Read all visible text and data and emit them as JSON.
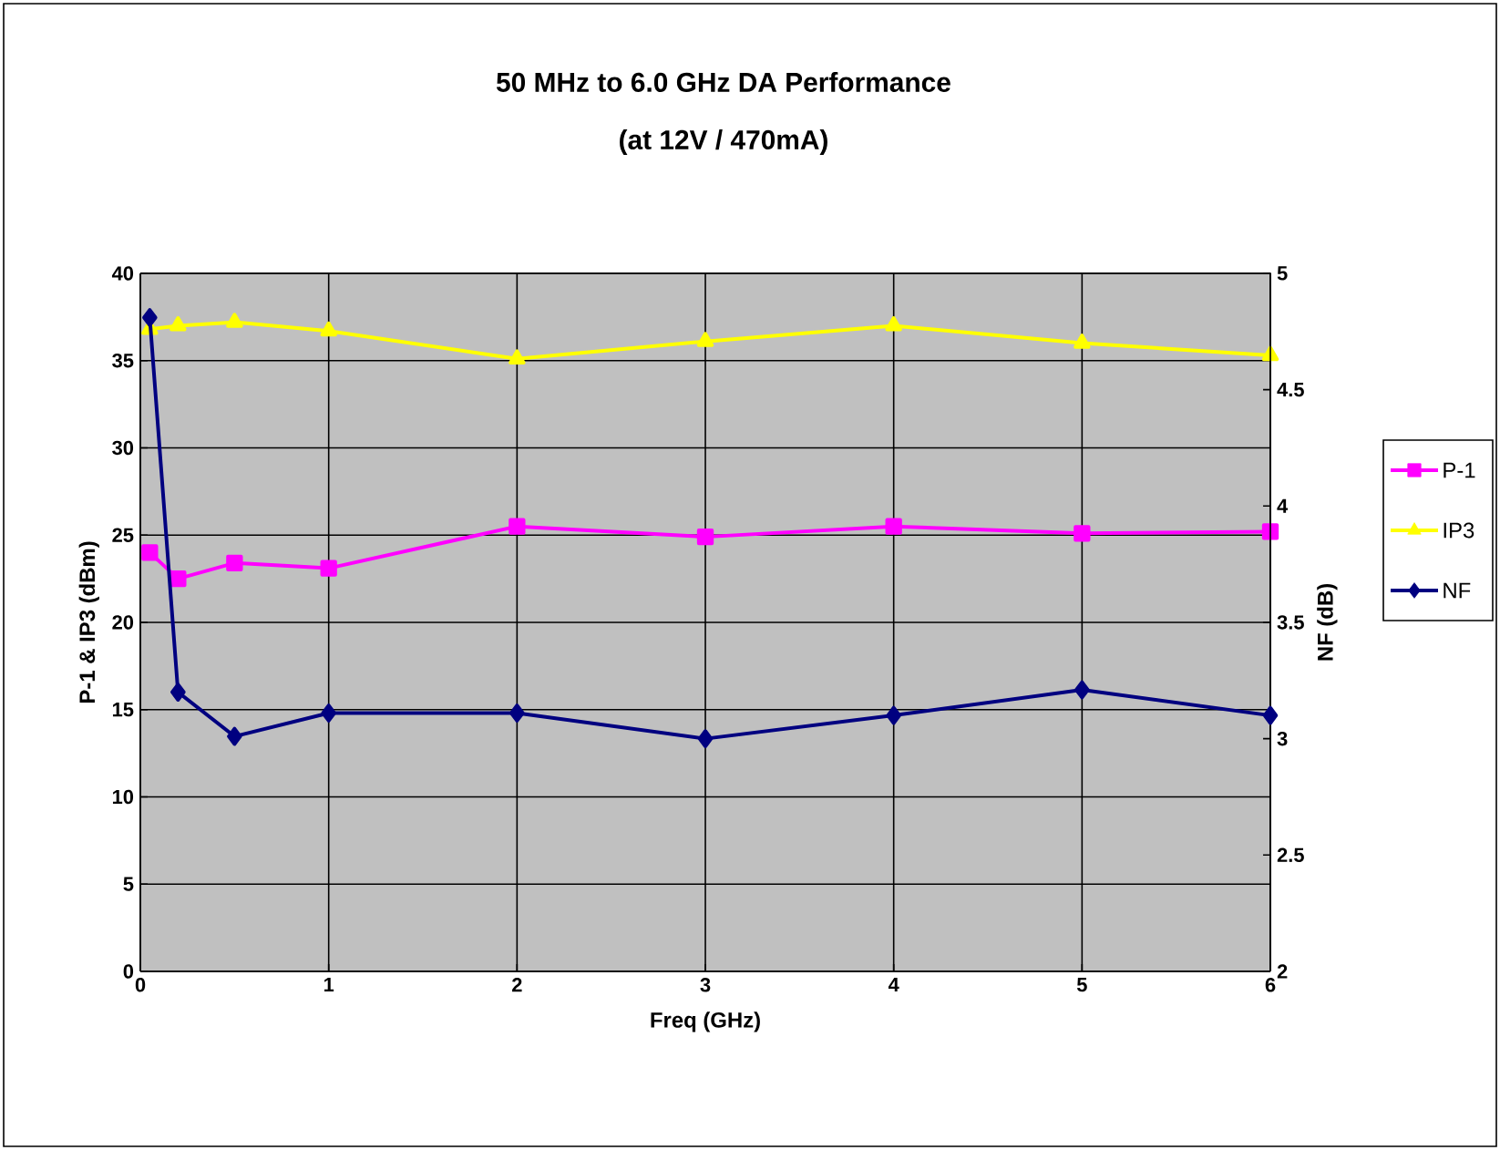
{
  "chart_data": {
    "type": "line",
    "title": "50 MHz to 6.0 GHz DA Performance",
    "subtitle": "(at 12V / 470mA)",
    "xlabel": "Freq (GHz)",
    "ylabel": "P-1 & IP3 (dBm)",
    "y2label": "NF (dB)",
    "x": [
      0.05,
      0.2,
      0.5,
      1,
      2,
      3,
      4,
      5,
      6
    ],
    "series": [
      {
        "name": "P-1",
        "color": "#ff00ff",
        "marker": "square",
        "values": [
          24.0,
          22.5,
          23.4,
          23.1,
          25.5,
          24.9,
          25.5,
          25.1,
          25.2
        ]
      },
      {
        "name": "IP3",
        "color": "#ffff00",
        "marker": "triangle",
        "values": [
          36.8,
          37.0,
          37.2,
          36.7,
          35.1,
          36.1,
          37.0,
          36.0,
          35.3
        ]
      },
      {
        "name": "NF",
        "color": "#000080",
        "marker": "diamond",
        "axis": "y2",
        "values": [
          4.81,
          3.2,
          3.01,
          3.11,
          3.11,
          3.0,
          3.1,
          3.21,
          3.1
        ]
      }
    ],
    "xlim": [
      0,
      6
    ],
    "xticks": [
      0,
      1,
      2,
      3,
      4,
      5,
      6
    ],
    "ylim": [
      0,
      40
    ],
    "yticks": [
      0,
      5,
      10,
      15,
      20,
      25,
      30,
      35,
      40
    ],
    "y2lim": [
      2,
      5
    ],
    "y2ticks": [
      2,
      2.5,
      3,
      3.5,
      4,
      4.5,
      5
    ],
    "grid": true,
    "legend": "right"
  }
}
